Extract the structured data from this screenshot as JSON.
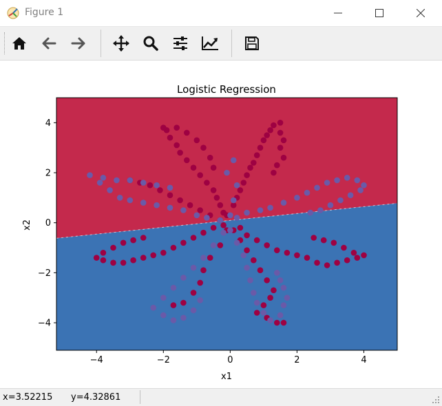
{
  "window": {
    "title": "Figure 1",
    "buttons": [
      "minimize",
      "maximize",
      "close"
    ]
  },
  "toolbar": {
    "tools": [
      {
        "name": "home-button",
        "icon": "home-icon"
      },
      {
        "name": "back-button",
        "icon": "arrow-left-icon"
      },
      {
        "name": "forward-button",
        "icon": "arrow-right-icon"
      },
      {
        "name": "pan-button",
        "icon": "move-icon"
      },
      {
        "name": "zoom-button",
        "icon": "magnifier-icon"
      },
      {
        "name": "subplots-button",
        "icon": "sliders-icon"
      },
      {
        "name": "edit-axes-button",
        "icon": "chart-line-icon"
      },
      {
        "name": "save-button",
        "icon": "floppy-disk-icon"
      }
    ]
  },
  "status": {
    "x": "x=3.52215",
    "y": "y=4.32861"
  },
  "chart_data": {
    "type": "scatter",
    "title": "Logistic Regression",
    "xlabel": "x1",
    "ylabel": "x2",
    "xlim": [
      -5.2,
      5.0
    ],
    "ylim": [
      -5.1,
      5.0
    ],
    "xticks": [
      -4,
      -2,
      0,
      2,
      4
    ],
    "yticks": [
      -4,
      -2,
      0,
      2,
      4
    ],
    "tick_labels_x": [
      "−4",
      "−2",
      "0",
      "2",
      "4"
    ],
    "tick_labels_y": [
      "−4",
      "−2",
      "0",
      "2",
      "4"
    ],
    "decision_boundary": {
      "x": [
        -5.2,
        5.0
      ],
      "y": [
        -0.62,
        0.78
      ]
    },
    "region_colors": {
      "upper": "#c4294c",
      "lower": "#3b73b4"
    },
    "series": [
      {
        "color": "#9e0142",
        "points": [
          [
            -0.1,
            0.3
          ],
          [
            0.1,
            0.7
          ],
          [
            0.2,
            1.0
          ],
          [
            0.3,
            1.3
          ],
          [
            0.4,
            1.6
          ],
          [
            0.5,
            1.9
          ],
          [
            0.6,
            2.2
          ],
          [
            0.7,
            2.4
          ],
          [
            0.8,
            2.7
          ],
          [
            0.9,
            3.0
          ],
          [
            1.0,
            3.3
          ],
          [
            1.1,
            3.5
          ],
          [
            1.2,
            3.7
          ],
          [
            1.3,
            3.9
          ],
          [
            1.5,
            4.0
          ],
          [
            1.5,
            3.6
          ],
          [
            1.6,
            3.3
          ],
          [
            1.5,
            3.0
          ],
          [
            1.6,
            2.6
          ],
          [
            1.4,
            2.3
          ],
          [
            1.3,
            2.0
          ],
          [
            -0.2,
            0.4
          ],
          [
            -0.3,
            0.7
          ],
          [
            -0.4,
            1.0
          ],
          [
            -0.5,
            1.3
          ],
          [
            -0.7,
            1.6
          ],
          [
            -0.9,
            1.9
          ],
          [
            -1.1,
            2.2
          ],
          [
            -1.3,
            2.5
          ],
          [
            -1.5,
            2.8
          ],
          [
            -1.6,
            3.1
          ],
          [
            -1.8,
            3.4
          ],
          [
            -1.9,
            3.7
          ],
          [
            -2.0,
            3.8
          ],
          [
            -1.6,
            3.8
          ],
          [
            -1.3,
            3.6
          ],
          [
            -1.0,
            3.3
          ],
          [
            -0.8,
            3.0
          ],
          [
            -0.6,
            2.6
          ],
          [
            -0.5,
            2.2
          ],
          [
            -0.3,
            0.1
          ],
          [
            -0.6,
            0.3
          ],
          [
            -0.9,
            0.5
          ],
          [
            -1.2,
            0.7
          ],
          [
            -1.5,
            0.9
          ],
          [
            -1.8,
            1.1
          ],
          [
            -2.1,
            1.3
          ],
          [
            -2.4,
            1.5
          ],
          [
            -2.7,
            1.6
          ],
          [
            -3.0,
            1.7
          ],
          [
            0.3,
            -0.2
          ],
          [
            0.5,
            -0.5
          ],
          [
            0.8,
            -0.7
          ],
          [
            1.1,
            -0.9
          ],
          [
            1.4,
            -1.1
          ],
          [
            1.7,
            -1.2
          ],
          [
            2.0,
            -1.3
          ],
          [
            2.3,
            -1.4
          ],
          [
            2.6,
            -1.6
          ],
          [
            2.9,
            -1.7
          ],
          [
            3.2,
            -1.6
          ],
          [
            3.5,
            -1.5
          ],
          [
            3.8,
            -1.4
          ],
          [
            4.0,
            -1.3
          ],
          [
            3.7,
            -1.2
          ],
          [
            3.4,
            -1.0
          ],
          [
            3.1,
            -0.8
          ],
          [
            2.8,
            -0.7
          ],
          [
            2.5,
            -0.6
          ],
          [
            -0.2,
            -0.1
          ],
          [
            -0.5,
            -0.2
          ],
          [
            -0.8,
            -0.4
          ],
          [
            -1.1,
            -0.6
          ],
          [
            -1.4,
            -0.8
          ],
          [
            -1.7,
            -1.0
          ],
          [
            -2.0,
            -1.2
          ],
          [
            -2.3,
            -1.3
          ],
          [
            -2.6,
            -1.4
          ],
          [
            -2.9,
            -1.5
          ],
          [
            -3.2,
            -1.6
          ],
          [
            -3.5,
            -1.6
          ],
          [
            -3.8,
            -1.5
          ],
          [
            -4.0,
            -1.4
          ],
          [
            -3.8,
            -1.2
          ],
          [
            -3.5,
            -1.0
          ],
          [
            -3.2,
            -0.8
          ],
          [
            -2.9,
            -0.7
          ],
          [
            -2.6,
            -0.6
          ],
          [
            0.1,
            -0.3
          ],
          [
            0.3,
            -0.7
          ],
          [
            0.5,
            -1.1
          ],
          [
            0.7,
            -1.5
          ],
          [
            0.9,
            -1.9
          ],
          [
            1.1,
            -2.3
          ],
          [
            1.3,
            -2.7
          ],
          [
            1.2,
            -3.0
          ],
          [
            1.0,
            -3.3
          ],
          [
            0.8,
            -3.6
          ],
          [
            1.1,
            -3.8
          ],
          [
            1.4,
            -4.0
          ],
          [
            1.6,
            -4.0
          ],
          [
            -0.1,
            -0.3
          ],
          [
            -0.3,
            -0.9
          ],
          [
            -0.6,
            -1.4
          ],
          [
            -0.8,
            -1.9
          ],
          [
            -0.9,
            -2.4
          ],
          [
            -1.1,
            -2.8
          ],
          [
            -1.4,
            -3.2
          ],
          [
            -1.7,
            -3.3
          ]
        ]
      },
      {
        "color": "#6a5aa8",
        "points": [
          [
            0.2,
            0.2
          ],
          [
            0.5,
            0.4
          ],
          [
            0.9,
            0.5
          ],
          [
            1.2,
            0.6
          ],
          [
            1.6,
            0.8
          ],
          [
            2.0,
            1.0
          ],
          [
            2.3,
            1.2
          ],
          [
            2.6,
            1.4
          ],
          [
            2.9,
            1.6
          ],
          [
            3.2,
            1.7
          ],
          [
            3.5,
            1.8
          ],
          [
            3.8,
            1.7
          ],
          [
            4.0,
            1.5
          ],
          [
            3.9,
            1.3
          ],
          [
            3.6,
            1.1
          ],
          [
            3.3,
            0.9
          ],
          [
            3.0,
            0.7
          ],
          [
            2.7,
            0.5
          ],
          [
            2.4,
            0.4
          ],
          [
            -0.3,
            0.1
          ],
          [
            -0.7,
            0.2
          ],
          [
            -1.0,
            0.3
          ],
          [
            -1.4,
            0.5
          ],
          [
            -1.8,
            0.6
          ],
          [
            -2.2,
            0.7
          ],
          [
            -2.6,
            0.8
          ],
          [
            -3.0,
            0.9
          ],
          [
            -3.3,
            1.0
          ],
          [
            -3.6,
            1.3
          ],
          [
            -3.9,
            1.6
          ],
          [
            -4.2,
            1.9
          ],
          [
            -3.8,
            1.8
          ],
          [
            -3.4,
            1.7
          ],
          [
            -3.0,
            1.7
          ],
          [
            -2.6,
            1.6
          ],
          [
            -2.2,
            1.5
          ],
          [
            -1.8,
            1.4
          ],
          [
            0.0,
            0.3
          ],
          [
            0.1,
            0.9
          ],
          [
            0.2,
            1.5
          ],
          [
            -0.1,
            2.0
          ],
          [
            0.1,
            2.5
          ],
          [
            0.0,
            -0.3
          ],
          [
            0.2,
            -0.8
          ],
          [
            0.4,
            -1.3
          ],
          [
            0.5,
            -1.8
          ],
          [
            0.6,
            -2.3
          ],
          [
            0.7,
            -2.8
          ],
          [
            0.8,
            -3.2
          ],
          [
            1.0,
            -3.6
          ],
          [
            1.2,
            -3.9
          ],
          [
            1.5,
            -3.7
          ],
          [
            1.6,
            -3.3
          ],
          [
            1.7,
            -3.0
          ],
          [
            1.6,
            -2.6
          ],
          [
            1.5,
            -2.3
          ],
          [
            1.4,
            -2.0
          ],
          [
            -0.2,
            -0.4
          ],
          [
            -0.5,
            -0.9
          ],
          [
            -0.8,
            -1.4
          ],
          [
            -1.1,
            -1.8
          ],
          [
            -1.4,
            -2.2
          ],
          [
            -1.7,
            -2.6
          ],
          [
            -2.0,
            -3.0
          ],
          [
            -2.3,
            -3.4
          ],
          [
            -2.0,
            -3.7
          ],
          [
            -1.7,
            -3.9
          ],
          [
            -1.4,
            -3.8
          ],
          [
            -1.1,
            -3.5
          ],
          [
            -0.9,
            -3.1
          ]
        ]
      }
    ]
  }
}
